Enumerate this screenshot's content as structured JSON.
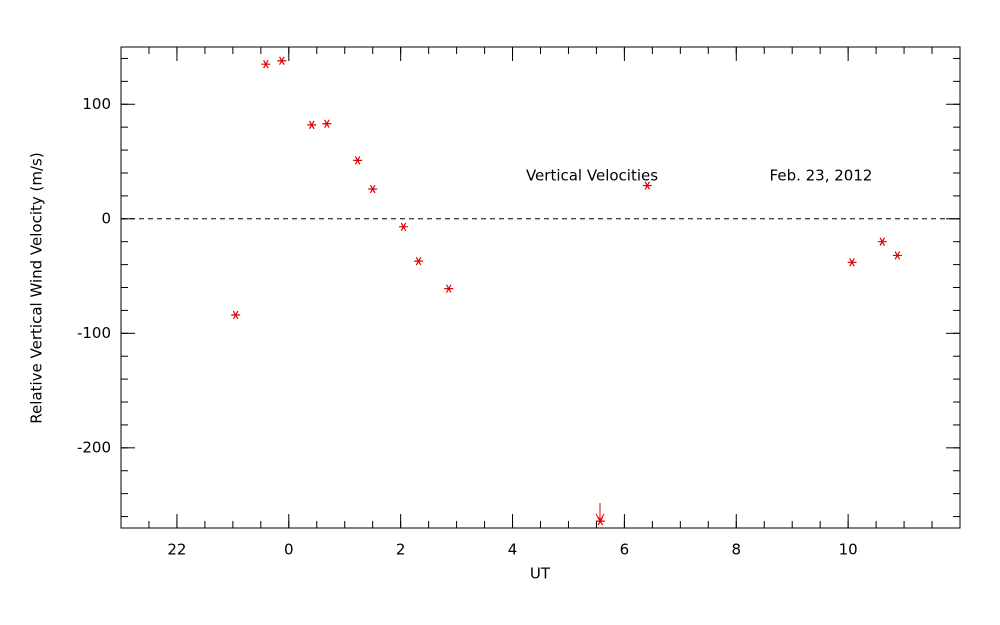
{
  "chart_data": {
    "type": "scatter",
    "annotations": [
      "Vertical Velocities",
      "Feb. 23, 2012"
    ],
    "x_label": "UT",
    "y_label": "Relative Vertical Wind Velocity (m/s)",
    "xlim": [
      -3,
      12
    ],
    "xticks": [
      {
        "value": -2,
        "label": "22"
      },
      0,
      2,
      4,
      6,
      8,
      10
    ],
    "ylim": [
      -270,
      150
    ],
    "yticks": [
      -200,
      -100,
      0,
      100
    ],
    "hline": 0,
    "series": [
      {
        "name": "Vertical Velocities",
        "color": "#e00000",
        "x": [
          -0.95,
          -0.41,
          -0.125,
          0.41,
          0.68,
          1.23,
          1.5,
          2.05,
          2.32,
          2.86,
          5.57,
          6.41,
          10.07,
          10.61,
          10.88
        ],
        "values": [
          -84,
          135,
          138,
          82,
          83,
          51,
          26,
          -7,
          -37,
          -61,
          -264,
          29,
          -38,
          -20,
          -32
        ]
      }
    ]
  }
}
